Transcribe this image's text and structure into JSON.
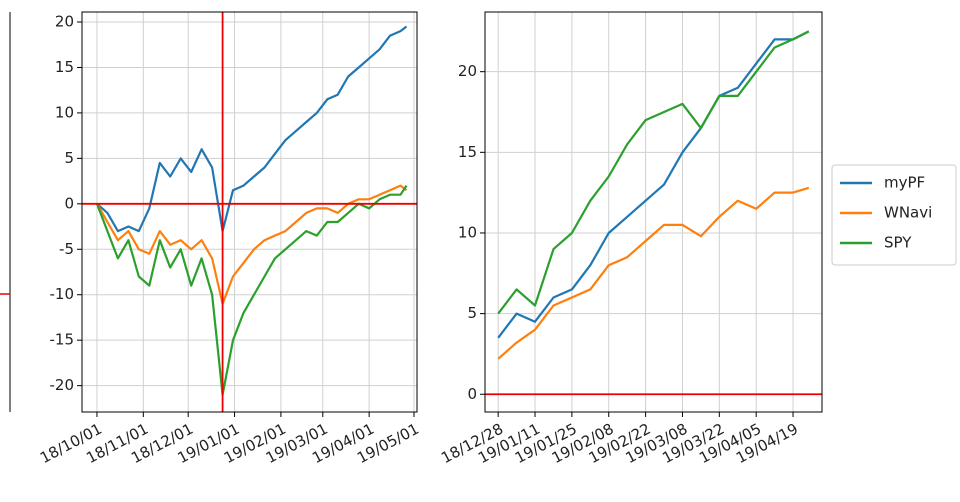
{
  "chart_data": [
    {
      "type": "line",
      "x": [
        "18/10/01",
        "18/10/08",
        "18/10/15",
        "18/10/22",
        "18/10/29",
        "18/11/05",
        "18/11/12",
        "18/11/19",
        "18/11/26",
        "18/12/03",
        "18/12/10",
        "18/12/17",
        "18/12/24",
        "18/12/31",
        "19/01/07",
        "19/01/14",
        "19/01/21",
        "19/01/28",
        "19/02/04",
        "19/02/11",
        "19/02/18",
        "19/02/25",
        "19/03/04",
        "19/03/11",
        "19/03/18",
        "19/03/25",
        "19/04/01",
        "19/04/08",
        "19/04/15",
        "19/04/22",
        "19/04/26"
      ],
      "xlim": [
        "18/09/21",
        "19/05/03"
      ],
      "xticks": [
        "18/10/01",
        "18/11/01",
        "18/12/01",
        "19/01/01",
        "19/02/01",
        "19/03/01",
        "19/04/01",
        "19/05/01"
      ],
      "ylim": [
        -22.9,
        21.1
      ],
      "yticks": [
        -20,
        -15,
        -10,
        -5,
        0,
        5,
        10,
        15,
        20
      ],
      "grid": true,
      "hline": 0,
      "vline": "18/12/24",
      "series": [
        {
          "name": "myPF",
          "color": "#1f77b4",
          "values": [
            0,
            -1,
            -3,
            -2.5,
            -3,
            -0.5,
            4.5,
            3,
            5,
            3.5,
            6,
            4,
            -3,
            1.5,
            2,
            3,
            4,
            5.5,
            7,
            8,
            9,
            10,
            11.5,
            12,
            14,
            15,
            16,
            17,
            18.5,
            19,
            19.5
          ]
        },
        {
          "name": "WNavi",
          "color": "#ff7f0e",
          "values": [
            0,
            -2,
            -4,
            -3,
            -5,
            -5.5,
            -3,
            -4.5,
            -4,
            -5,
            -4,
            -6,
            -11,
            -8,
            -6.5,
            -5,
            -4,
            -3.5,
            -3,
            -2,
            -1,
            -0.5,
            -0.5,
            -1,
            0,
            0.5,
            0.5,
            1,
            1.5,
            2,
            1.5
          ]
        },
        {
          "name": "SPY",
          "color": "#2ca02c",
          "values": [
            0,
            -3,
            -6,
            -4,
            -8,
            -9,
            -4,
            -7,
            -5,
            -9,
            -6,
            -10,
            -21,
            -15,
            -12,
            -10,
            -8,
            -6,
            -5,
            -4,
            -3,
            -3.5,
            -2,
            -2,
            -1,
            0,
            -0.5,
            0.5,
            1,
            1,
            2
          ]
        }
      ]
    },
    {
      "type": "line",
      "x": [
        "18/12/28",
        "19/01/04",
        "19/01/11",
        "19/01/18",
        "19/01/25",
        "19/02/01",
        "19/02/08",
        "19/02/15",
        "19/02/22",
        "19/03/01",
        "19/03/08",
        "19/03/15",
        "19/03/22",
        "19/03/29",
        "19/04/05",
        "19/04/12",
        "19/04/19",
        "19/04/25"
      ],
      "xlim": [
        "18/12/23",
        "19/04/30"
      ],
      "xticks": [
        "18/12/28",
        "19/01/11",
        "19/01/25",
        "19/02/08",
        "19/02/22",
        "19/03/08",
        "19/03/22",
        "19/04/05",
        "19/04/19"
      ],
      "ylim": [
        -1.1,
        23.7
      ],
      "yticks": [
        0,
        5,
        10,
        15,
        20
      ],
      "grid": true,
      "hline": 0,
      "legend": "outside right",
      "series": [
        {
          "name": "myPF",
          "color": "#1f77b4",
          "values": [
            3.5,
            5,
            4.5,
            6,
            6.5,
            8,
            10,
            11,
            12,
            13,
            15,
            16.5,
            18.5,
            19,
            20.5,
            22,
            22,
            22.5
          ]
        },
        {
          "name": "WNavi",
          "color": "#ff7f0e",
          "values": [
            2.2,
            3.2,
            4,
            5.5,
            6,
            6.5,
            8,
            8.5,
            9.5,
            10.5,
            10.5,
            9.8,
            11,
            12,
            11.5,
            12.5,
            12.5,
            12.8
          ]
        },
        {
          "name": "SPY",
          "color": "#2ca02c",
          "values": [
            5,
            6.5,
            5.5,
            9,
            10,
            12,
            13.5,
            15.5,
            17,
            17.5,
            18,
            16.5,
            18.5,
            18.5,
            20,
            21.5,
            22,
            22.5
          ]
        }
      ]
    }
  ]
}
